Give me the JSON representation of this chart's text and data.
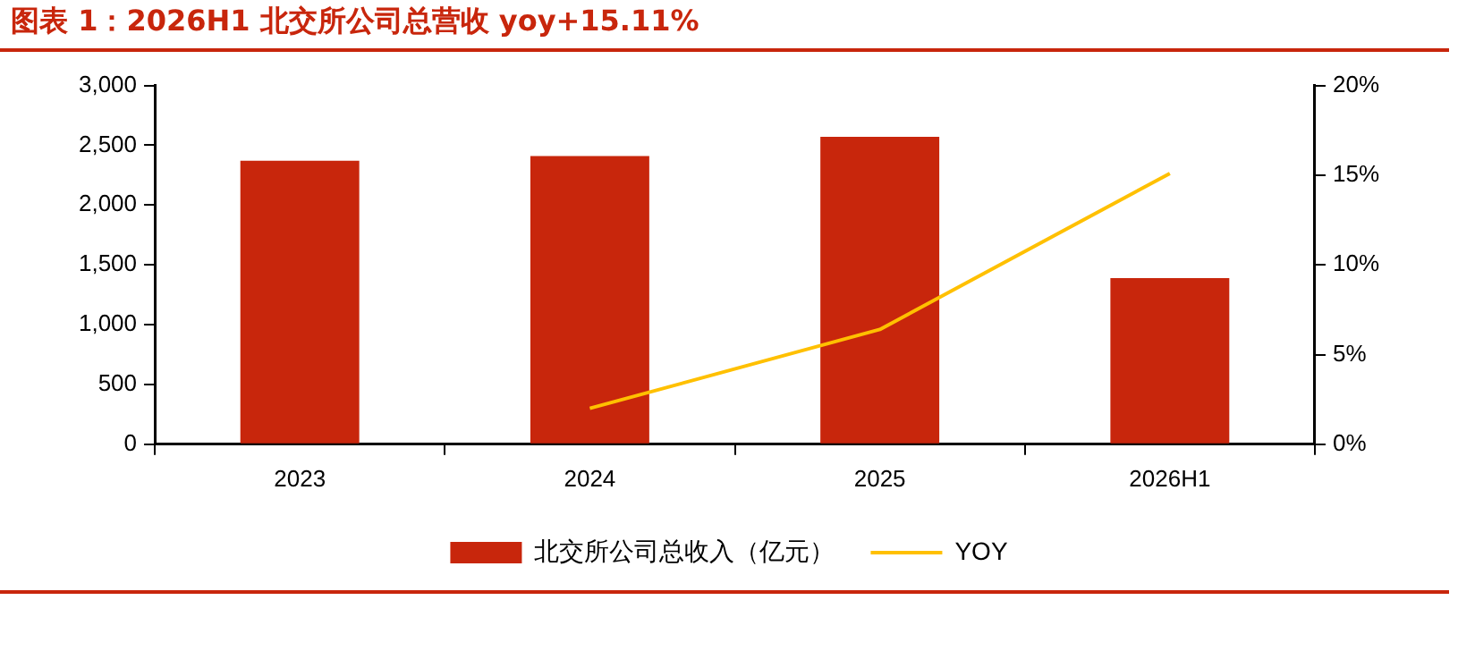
{
  "chart_data": {
    "type": "bar",
    "title": "图表 1：2026H1 北交所公司总营收 yoy+15.11%",
    "categories": [
      "2023",
      "2024",
      "2025",
      "2026H1"
    ],
    "series": [
      {
        "name": "北交所公司总收入（亿元）",
        "color": "#c8260c",
        "values": [
          2370,
          2410,
          2570,
          1390
        ]
      },
      {
        "name": "YOY",
        "type": "line",
        "axis": "y2",
        "color": "#ffc000",
        "values": [
          null,
          2.0,
          6.4,
          15.1
        ]
      }
    ],
    "ylim": [
      0,
      3000
    ],
    "yticks": [
      {
        "value": 0,
        "label": "0"
      },
      {
        "value": 500,
        "label": "500"
      },
      {
        "value": 1000,
        "label": "1,000"
      },
      {
        "value": 1500,
        "label": "1,500"
      },
      {
        "value": 2000,
        "label": "2,000"
      },
      {
        "value": 2500,
        "label": "2,500"
      },
      {
        "value": 3000,
        "label": "3,000"
      }
    ],
    "y2lim": [
      0,
      20
    ],
    "y2ticks": [
      {
        "value": 0,
        "label": "0%"
      },
      {
        "value": 5,
        "label": "5%"
      },
      {
        "value": 10,
        "label": "10%"
      },
      {
        "value": 15,
        "label": "15%"
      },
      {
        "value": 20,
        "label": "20%"
      }
    ],
    "grid": false,
    "legend": "bottom",
    "marker": "none",
    "line_style": "solid"
  }
}
